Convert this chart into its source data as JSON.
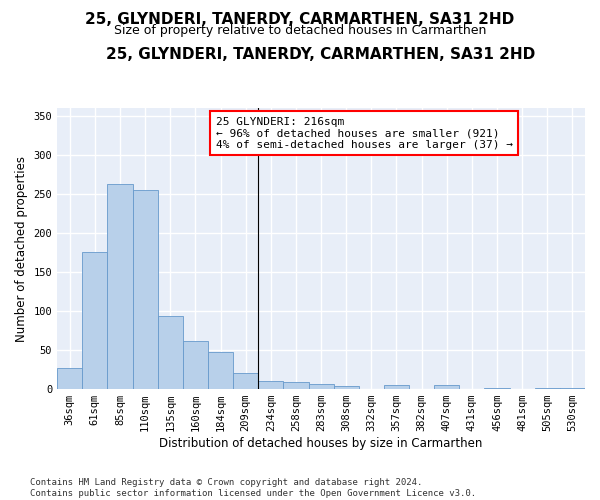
{
  "title": "25, GLYNDERI, TANERDY, CARMARTHEN, SA31 2HD",
  "subtitle": "Size of property relative to detached houses in Carmarthen",
  "xlabel": "Distribution of detached houses by size in Carmarthen",
  "ylabel": "Number of detached properties",
  "footer_line1": "Contains HM Land Registry data © Crown copyright and database right 2024.",
  "footer_line2": "Contains public sector information licensed under the Open Government Licence v3.0.",
  "bar_labels": [
    "36sqm",
    "61sqm",
    "85sqm",
    "110sqm",
    "135sqm",
    "160sqm",
    "184sqm",
    "209sqm",
    "234sqm",
    "258sqm",
    "283sqm",
    "308sqm",
    "332sqm",
    "357sqm",
    "382sqm",
    "407sqm",
    "431sqm",
    "456sqm",
    "481sqm",
    "505sqm",
    "530sqm"
  ],
  "bar_values": [
    27,
    175,
    263,
    255,
    94,
    61,
    47,
    20,
    10,
    9,
    7,
    4,
    0,
    5,
    0,
    5,
    0,
    2,
    0,
    2,
    2
  ],
  "bar_color": "#b8d0ea",
  "bar_edge_color": "#6699cc",
  "background_color": "#e8eef8",
  "grid_color": "#ffffff",
  "ylim": [
    0,
    360
  ],
  "yticks": [
    0,
    50,
    100,
    150,
    200,
    250,
    300,
    350
  ],
  "annotation_line1": "25 GLYNDERI: 216sqm",
  "annotation_line2": "← 96% of detached houses are smaller (921)",
  "annotation_line3": "4% of semi-detached houses are larger (37) →",
  "vline_x_index": 7.5,
  "title_fontsize": 11,
  "subtitle_fontsize": 9,
  "axis_label_fontsize": 8.5,
  "tick_fontsize": 7.5,
  "annotation_fontsize": 8,
  "footer_fontsize": 6.5
}
